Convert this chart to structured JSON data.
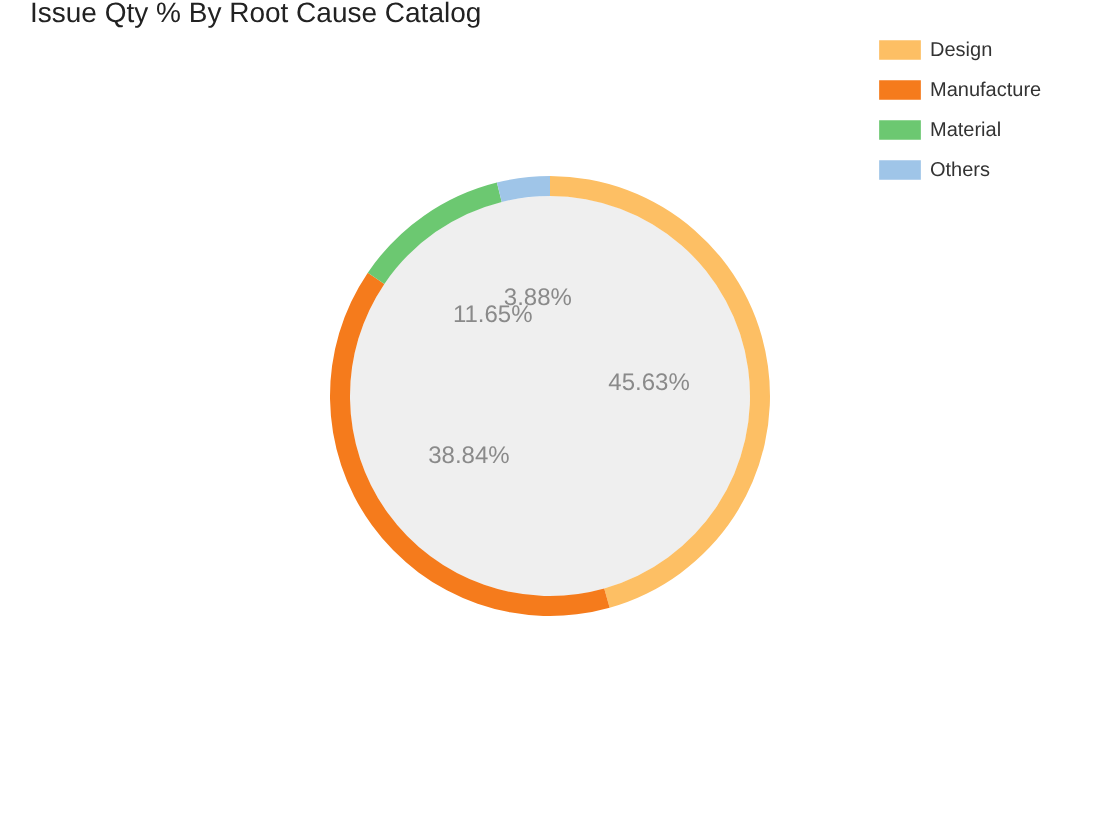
{
  "chart_data": {
    "type": "donut",
    "title": "Issue Qty % By Root Cause Catalog",
    "categories": [
      "Design",
      "Manufacture",
      "Material",
      "Others"
    ],
    "values": [
      45.63,
      38.84,
      11.65,
      3.88
    ],
    "colors": [
      "#fdbf64",
      "#f57b1c",
      "#6cc871",
      "#9fc5e8"
    ],
    "value_labels": [
      "45.63%",
      "38.84%",
      "11.65%",
      "3.88%"
    ],
    "legend": "top right"
  }
}
